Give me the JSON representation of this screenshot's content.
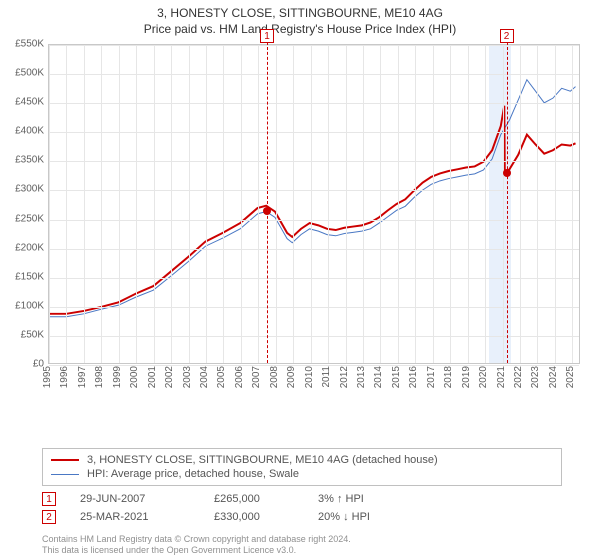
{
  "title": "3, HONESTY CLOSE, SITTINGBOURNE, ME10 4AG",
  "subtitle": "Price paid vs. HM Land Registry's House Price Index (HPI)",
  "chart": {
    "type": "line",
    "background_color": "#ffffff",
    "grid_color": "#e6e6e6",
    "border_color": "#c8c8c8",
    "label_color": "#606060",
    "label_fontsize": 10,
    "y": {
      "min": 0,
      "max": 550000,
      "step": 50000,
      "format_prefix": "£",
      "format_suffix": "K",
      "format_divisor": 1000,
      "ticks": [
        0,
        50000,
        100000,
        150000,
        200000,
        250000,
        300000,
        350000,
        400000,
        450000,
        500000,
        550000
      ]
    },
    "x": {
      "min": 1995,
      "max": 2025.5,
      "ticks": [
        1995,
        1996,
        1997,
        1998,
        1999,
        2000,
        2001,
        2002,
        2003,
        2004,
        2005,
        2006,
        2007,
        2008,
        2009,
        2010,
        2011,
        2012,
        2013,
        2014,
        2015,
        2016,
        2017,
        2018,
        2019,
        2020,
        2021,
        2022,
        2023,
        2024,
        2025
      ]
    },
    "highlight_band": {
      "from": 2020.2,
      "to": 2021.5,
      "color": "#e8f0fb"
    },
    "series": [
      {
        "name": "3, HONESTY CLOSE, SITTINGBOURNE, ME10 4AG (detached house)",
        "key": "property",
        "color": "#cc0000",
        "width": 2,
        "points": [
          [
            1995,
            85000
          ],
          [
            1996,
            85000
          ],
          [
            1997,
            90000
          ],
          [
            1998,
            97000
          ],
          [
            1999,
            105000
          ],
          [
            2000,
            120000
          ],
          [
            2001,
            133000
          ],
          [
            2002,
            158000
          ],
          [
            2003,
            183000
          ],
          [
            2004,
            210000
          ],
          [
            2005,
            225000
          ],
          [
            2006,
            242000
          ],
          [
            2007,
            268000
          ],
          [
            2007.5,
            272000
          ],
          [
            2008,
            262000
          ],
          [
            2008.7,
            225000
          ],
          [
            2009,
            218000
          ],
          [
            2009.5,
            232000
          ],
          [
            2010,
            242000
          ],
          [
            2010.5,
            238000
          ],
          [
            2011,
            232000
          ],
          [
            2011.5,
            230000
          ],
          [
            2012,
            234000
          ],
          [
            2012.5,
            236000
          ],
          [
            2013,
            238000
          ],
          [
            2013.5,
            243000
          ],
          [
            2014,
            252000
          ],
          [
            2014.5,
            264000
          ],
          [
            2015,
            275000
          ],
          [
            2015.5,
            283000
          ],
          [
            2016,
            298000
          ],
          [
            2016.5,
            312000
          ],
          [
            2017,
            322000
          ],
          [
            2017.5,
            328000
          ],
          [
            2018,
            332000
          ],
          [
            2018.5,
            335000
          ],
          [
            2019,
            338000
          ],
          [
            2019.5,
            340000
          ],
          [
            2020,
            348000
          ],
          [
            2020.5,
            368000
          ],
          [
            2021,
            410000
          ],
          [
            2021.2,
            445000
          ],
          [
            2021.23,
            330000
          ],
          [
            2021.5,
            335000
          ],
          [
            2022,
            360000
          ],
          [
            2022.5,
            395000
          ],
          [
            2023,
            378000
          ],
          [
            2023.5,
            362000
          ],
          [
            2024,
            368000
          ],
          [
            2024.5,
            378000
          ],
          [
            2025,
            376000
          ],
          [
            2025.3,
            380000
          ]
        ]
      },
      {
        "name": "HPI: Average price, detached house, Swale",
        "key": "hpi",
        "color": "#4a78c4",
        "width": 1,
        "points": [
          [
            1995,
            80000
          ],
          [
            1996,
            80000
          ],
          [
            1997,
            85000
          ],
          [
            1998,
            93000
          ],
          [
            1999,
            100000
          ],
          [
            2000,
            114000
          ],
          [
            2001,
            126000
          ],
          [
            2002,
            150000
          ],
          [
            2003,
            175000
          ],
          [
            2004,
            202000
          ],
          [
            2005,
            216000
          ],
          [
            2006,
            232000
          ],
          [
            2007,
            258000
          ],
          [
            2007.5,
            262000
          ],
          [
            2008,
            252000
          ],
          [
            2008.7,
            215000
          ],
          [
            2009,
            208000
          ],
          [
            2009.5,
            222000
          ],
          [
            2010,
            232000
          ],
          [
            2010.5,
            228000
          ],
          [
            2011,
            222000
          ],
          [
            2011.5,
            220000
          ],
          [
            2012,
            224000
          ],
          [
            2012.5,
            226000
          ],
          [
            2013,
            228000
          ],
          [
            2013.5,
            232000
          ],
          [
            2014,
            242000
          ],
          [
            2014.5,
            253000
          ],
          [
            2015,
            264000
          ],
          [
            2015.5,
            271000
          ],
          [
            2016,
            286000
          ],
          [
            2016.5,
            299000
          ],
          [
            2017,
            309000
          ],
          [
            2017.5,
            315000
          ],
          [
            2018,
            319000
          ],
          [
            2018.5,
            322000
          ],
          [
            2019,
            325000
          ],
          [
            2019.5,
            327000
          ],
          [
            2020,
            334000
          ],
          [
            2020.5,
            353000
          ],
          [
            2021,
            395000
          ],
          [
            2021.5,
            420000
          ],
          [
            2022,
            455000
          ],
          [
            2022.5,
            490000
          ],
          [
            2023,
            470000
          ],
          [
            2023.5,
            450000
          ],
          [
            2024,
            458000
          ],
          [
            2024.5,
            475000
          ],
          [
            2025,
            470000
          ],
          [
            2025.3,
            478000
          ]
        ]
      }
    ],
    "markers": [
      {
        "x": 2007.5,
        "y": 265000,
        "color": "#cc0000",
        "size": 8
      },
      {
        "x": 2021.23,
        "y": 330000,
        "color": "#cc0000",
        "size": 8
      }
    ],
    "events": [
      {
        "num": "1",
        "x": 2007.5,
        "color": "#cc0000",
        "date": "29-JUN-2007",
        "price": "£265,000",
        "note": "3% ↑ HPI"
      },
      {
        "num": "2",
        "x": 2021.23,
        "color": "#cc0000",
        "date": "25-MAR-2021",
        "price": "£330,000",
        "note": "20% ↓ HPI"
      }
    ]
  },
  "footer": {
    "line1": "Contains HM Land Registry data © Crown copyright and database right 2024.",
    "line2": "This data is licensed under the Open Government Licence v3.0."
  }
}
